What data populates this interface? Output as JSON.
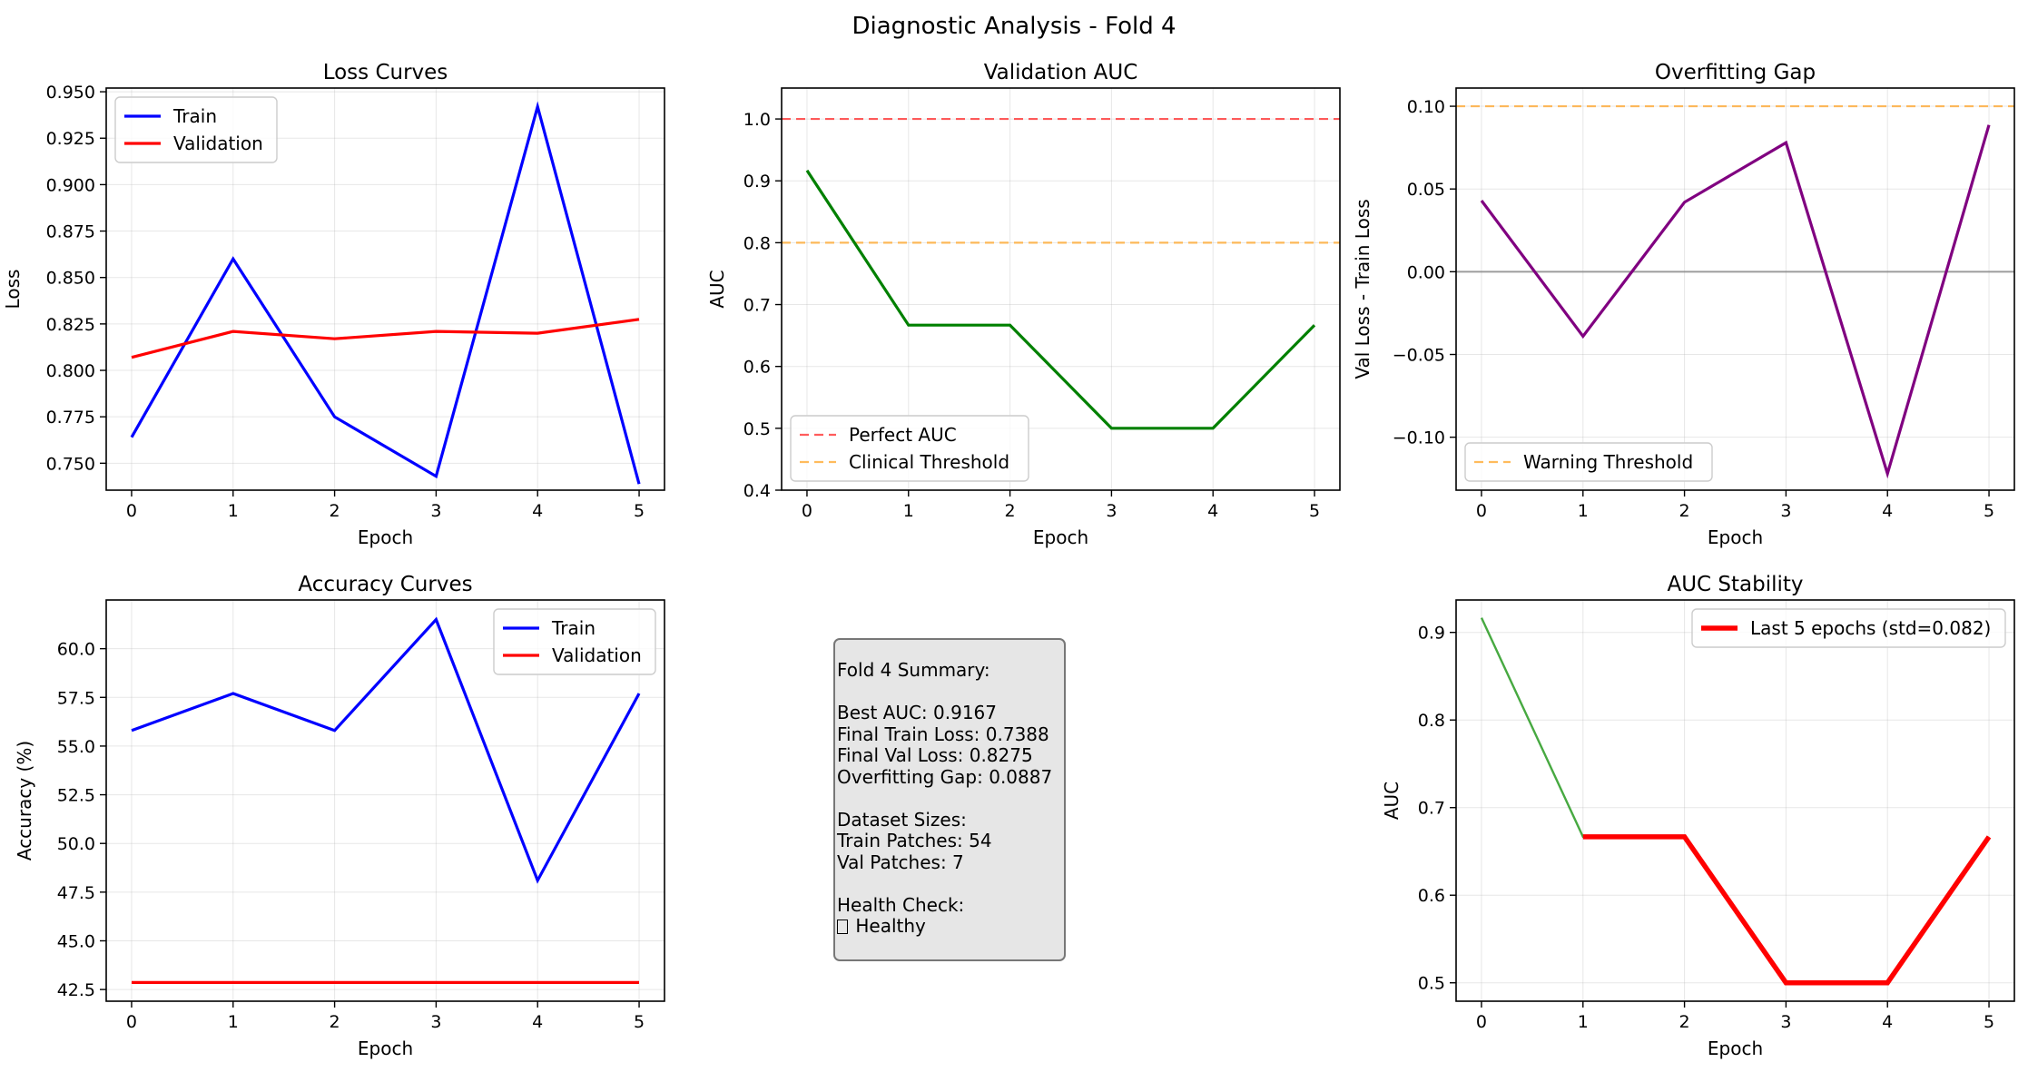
{
  "figure_title": "Diagnostic Analysis - Fold 4",
  "summary": {
    "lines": [
      "Fold 4 Summary:",
      "",
      "Best AUC: 0.9167",
      "Final Train Loss: 0.7388",
      "Final Val Loss: 0.8275",
      "Overfitting Gap: 0.0887",
      "",
      "Dataset Sizes:",
      "Train Patches: 54",
      "Val Patches: 7",
      "",
      "Health Check:",
      "Healthy"
    ]
  },
  "chart_data": [
    {
      "id": "loss",
      "type": "line",
      "title": "Loss Curves",
      "xlabel": "Epoch",
      "ylabel": "Loss",
      "x": [
        0,
        1,
        2,
        3,
        4,
        5
      ],
      "xlim": [
        -0.25,
        5.25
      ],
      "ylim": [
        0.7355,
        0.952
      ],
      "xticks": [
        0,
        1,
        2,
        3,
        4,
        5
      ],
      "yticks": [
        0.75,
        0.775,
        0.8,
        0.825,
        0.85,
        0.875,
        0.9,
        0.925,
        0.95
      ],
      "ytick_labels": [
        "0.750",
        "0.775",
        "0.800",
        "0.825",
        "0.850",
        "0.875",
        "0.900",
        "0.925",
        "0.950"
      ],
      "grid": true,
      "legend": "upper left",
      "series": [
        {
          "name": "Train",
          "color": "#0000ff",
          "values": [
            0.764,
            0.86,
            0.775,
            0.743,
            0.942,
            0.7388
          ]
        },
        {
          "name": "Validation",
          "color": "#ff0000",
          "values": [
            0.807,
            0.821,
            0.817,
            0.821,
            0.82,
            0.8275
          ]
        }
      ]
    },
    {
      "id": "val_auc",
      "type": "line",
      "title": "Validation AUC",
      "xlabel": "Epoch",
      "ylabel": "AUC",
      "x": [
        0,
        1,
        2,
        3,
        4,
        5
      ],
      "xlim": [
        -0.25,
        5.25
      ],
      "ylim": [
        0.4,
        1.05
      ],
      "xticks": [
        0,
        1,
        2,
        3,
        4,
        5
      ],
      "yticks": [
        0.4,
        0.5,
        0.6,
        0.7,
        0.8,
        0.9,
        1.0
      ],
      "ytick_labels": [
        "0.4",
        "0.5",
        "0.6",
        "0.7",
        "0.8",
        "0.9",
        "1.0"
      ],
      "grid": true,
      "legend": "lower left",
      "series": [
        {
          "name": "",
          "color": "#008000",
          "values": [
            0.9167,
            0.6667,
            0.6667,
            0.5,
            0.5,
            0.6667
          ]
        }
      ],
      "hlines": [
        {
          "name": "Perfect AUC",
          "y": 1.0,
          "color": "#ff3333"
        },
        {
          "name": "Clinical Threshold",
          "y": 0.8,
          "color": "#ffaa33"
        }
      ]
    },
    {
      "id": "gap",
      "type": "line",
      "title": "Overfitting Gap",
      "xlabel": "Epoch",
      "ylabel": "Val Loss - Train Loss",
      "x": [
        0,
        1,
        2,
        3,
        4,
        5
      ],
      "xlim": [
        -0.25,
        5.25
      ],
      "ylim": [
        -0.132,
        0.111
      ],
      "xticks": [
        0,
        1,
        2,
        3,
        4,
        5
      ],
      "yticks": [
        -0.1,
        -0.05,
        0.0,
        0.05,
        0.1
      ],
      "ytick_labels": [
        "−0.10",
        "−0.05",
        "0.00",
        "0.05",
        "0.10"
      ],
      "grid": true,
      "legend": "lower left",
      "series": [
        {
          "name": "",
          "color": "#800080",
          "values": [
            0.043,
            -0.039,
            0.042,
            0.078,
            -0.122,
            0.0887
          ]
        }
      ],
      "hlines": [
        {
          "name": "Warning Threshold",
          "y": 0.1,
          "color": "#ffaa33"
        },
        {
          "name": "",
          "y": 0.0,
          "color": "#808080",
          "solid": true
        }
      ]
    },
    {
      "id": "acc",
      "type": "line",
      "title": "Accuracy Curves",
      "xlabel": "Epoch",
      "ylabel": "Accuracy (%)",
      "x": [
        0,
        1,
        2,
        3,
        4,
        5
      ],
      "xlim": [
        -0.25,
        5.25
      ],
      "ylim": [
        41.9,
        62.5
      ],
      "xticks": [
        0,
        1,
        2,
        3,
        4,
        5
      ],
      "yticks": [
        42.5,
        45.0,
        47.5,
        50.0,
        52.5,
        55.0,
        57.5,
        60.0
      ],
      "ytick_labels": [
        "42.5",
        "45.0",
        "47.5",
        "50.0",
        "52.5",
        "55.0",
        "57.5",
        "60.0"
      ],
      "grid": true,
      "legend": "upper right",
      "series": [
        {
          "name": "Train",
          "color": "#0000ff",
          "values": [
            55.8,
            57.7,
            55.8,
            61.5,
            48.1,
            57.7
          ]
        },
        {
          "name": "Validation",
          "color": "#ff0000",
          "values": [
            42.86,
            42.86,
            42.86,
            42.86,
            42.86,
            42.86
          ]
        }
      ]
    },
    {
      "id": "auc_stability",
      "type": "line",
      "title": "AUC Stability",
      "xlabel": "Epoch",
      "ylabel": "AUC",
      "x": [
        0,
        1,
        2,
        3,
        4,
        5
      ],
      "xlim": [
        -0.25,
        5.25
      ],
      "ylim": [
        0.479,
        0.937
      ],
      "xticks": [
        0,
        1,
        2,
        3,
        4,
        5
      ],
      "yticks": [
        0.5,
        0.6,
        0.7,
        0.8,
        0.9
      ],
      "ytick_labels": [
        "0.5",
        "0.6",
        "0.7",
        "0.8",
        "0.9"
      ],
      "grid": true,
      "legend": "upper right",
      "series": [
        {
          "name": "",
          "color": "#33a02c",
          "values": [
            0.9167,
            0.6667,
            0.6667,
            0.5,
            0.5,
            0.6667
          ]
        },
        {
          "name": "Last 5 epochs (std=0.082)",
          "color": "#ff0000",
          "x": [
            1,
            2,
            3,
            4,
            5
          ],
          "values": [
            0.6667,
            0.6667,
            0.5,
            0.5,
            0.6667
          ]
        }
      ]
    }
  ]
}
